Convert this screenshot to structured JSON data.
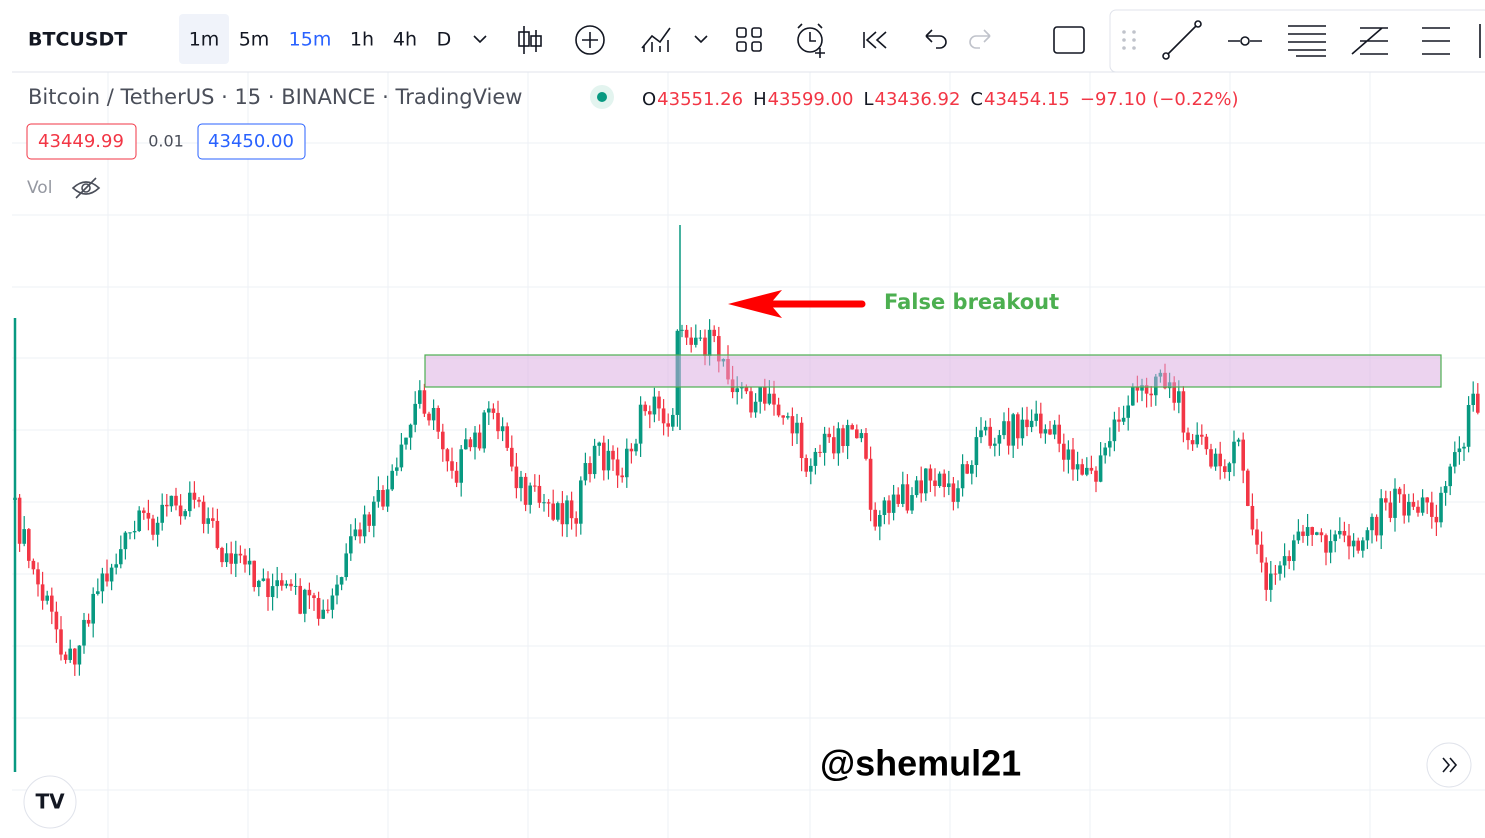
{
  "toolbar": {
    "symbol": "BTCUSDT",
    "intervals": [
      "1m",
      "5m",
      "15m",
      "1h",
      "4h",
      "D"
    ]
  },
  "legend": {
    "title": "Bitcoin / TetherUS · 15 · BINANCE · TradingView",
    "ohlc": [
      {
        "label": "O",
        "value": "43551.26"
      },
      {
        "label": "H",
        "value": "43599.00"
      },
      {
        "label": "L",
        "value": "43436.92"
      },
      {
        "label": "C",
        "value": "43454.15"
      }
    ],
    "change": "−97.10 (−0.22%)",
    "bid": "43449.99",
    "spread": "0.01",
    "ask": "43450.00",
    "volume": "Vol"
  },
  "annotation": "False breakout",
  "watermark": "@shemul21"
}
